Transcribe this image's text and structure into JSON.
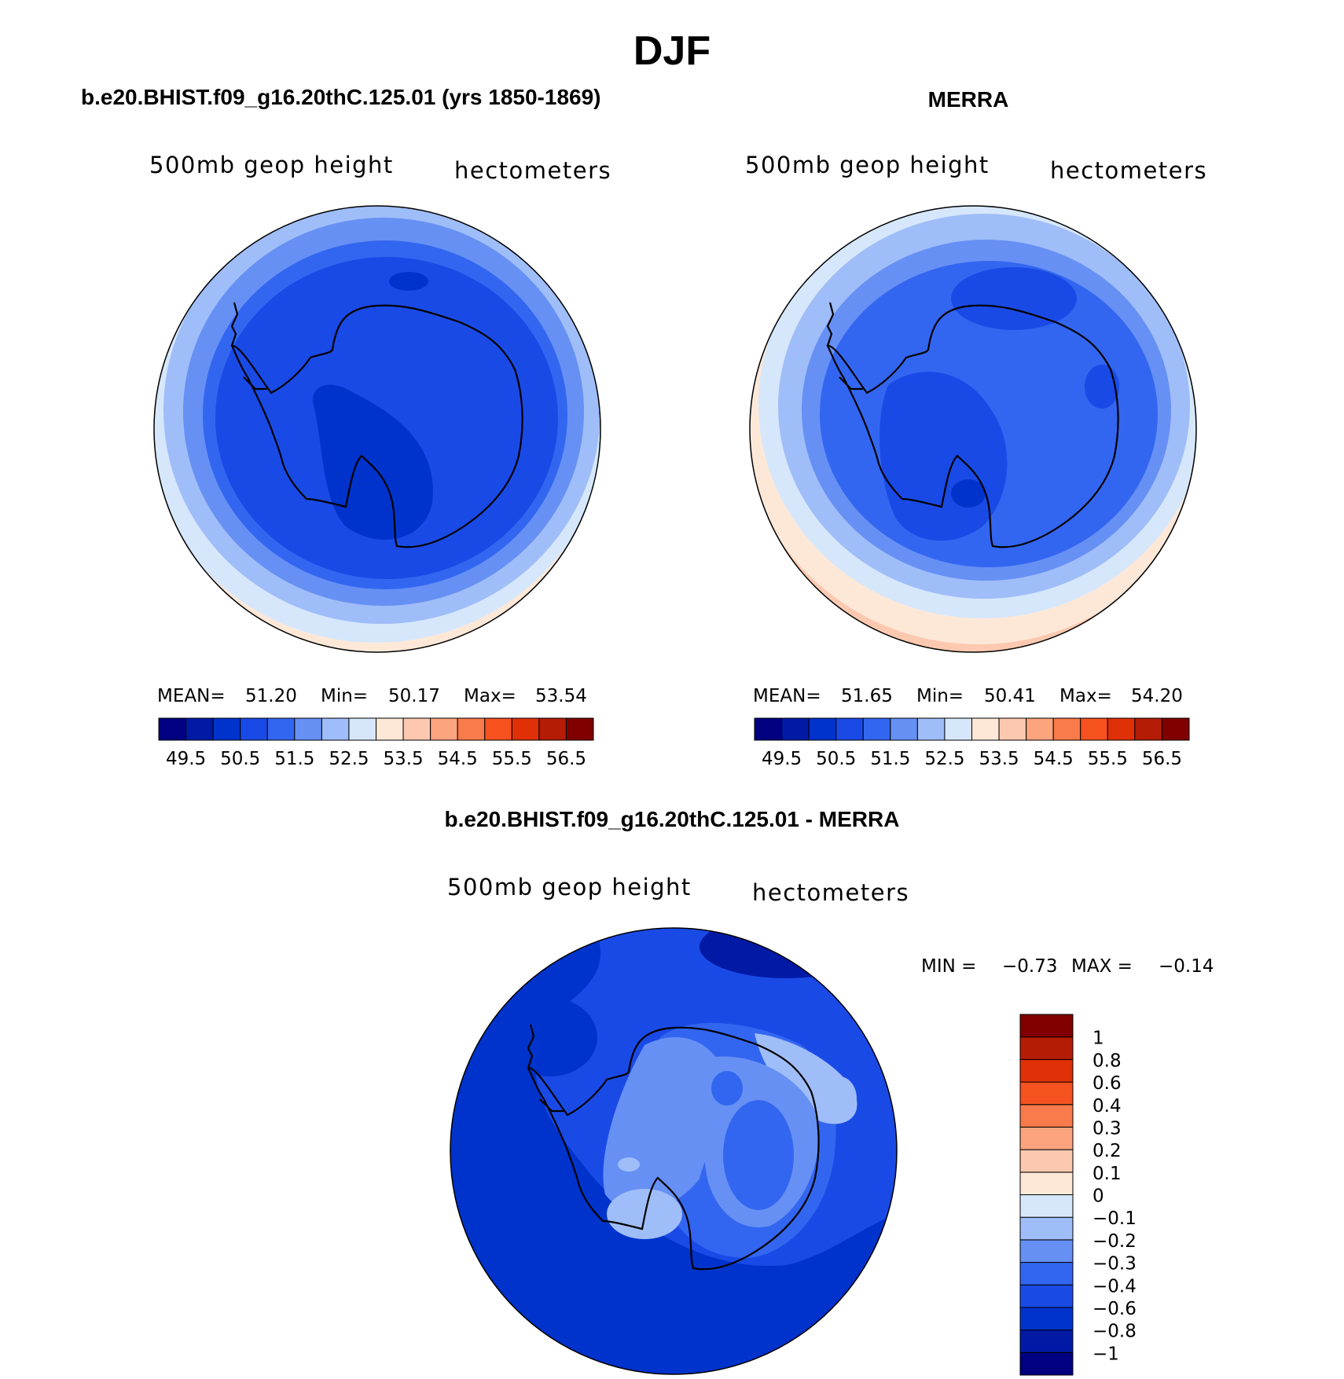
{
  "figure": {
    "season": "DJF"
  },
  "panels": [
    {
      "title": "b.e20.BHIST.f09_g16.20thC.125.01 (yrs 1850-1869)",
      "field": "500mb geop height",
      "units": "hectometers",
      "stats": {
        "mean_label": "MEAN=",
        "mean": "51.20",
        "min_label": "Min=",
        "min": "50.17",
        "max_label": "Max=",
        "max": "53.54"
      }
    },
    {
      "title": "MERRA",
      "field": "500mb geop height",
      "units": "hectometers",
      "stats": {
        "mean_label": "MEAN=",
        "mean": "51.65",
        "min_label": "Min=",
        "min": "50.41",
        "max_label": "Max=",
        "max": "54.20"
      }
    }
  ],
  "difference": {
    "title": "b.e20.BHIST.f09_g16.20thC.125.01 - MERRA",
    "field": "500mb geop height",
    "units": "hectometers",
    "min_label": "MIN =",
    "min": "−0.73",
    "max_label": "MAX =",
    "max": "−0.14"
  },
  "colorbar_abs": {
    "colors": [
      "#000080",
      "#001aa6",
      "#0033cc",
      "#1a4ae6",
      "#3366f0",
      "#6690f4",
      "#9fbdf8",
      "#d6e7fc",
      "#fde8d8",
      "#fcc9b0",
      "#fba47e",
      "#f97a4a",
      "#f5521f",
      "#e03008",
      "#b41c05",
      "#800000"
    ],
    "labels": [
      "49.5",
      "50.5",
      "51.5",
      "52.5",
      "53.5",
      "54.5",
      "55.5",
      "56.5"
    ]
  },
  "colorbar_diff": {
    "colors": [
      "#000080",
      "#001aa6",
      "#0033cc",
      "#1a4ae6",
      "#3366f0",
      "#6690f4",
      "#9fbdf8",
      "#d6e7fc",
      "#fde8d8",
      "#fcc9b0",
      "#fba47e",
      "#f97a4a",
      "#f5521f",
      "#e03008",
      "#b41c05",
      "#800000"
    ],
    "labels": [
      "−1",
      "−0.8",
      "−0.6",
      "−0.4",
      "−0.3",
      "−0.2",
      "−0.1",
      "0",
      "0.1",
      "0.2",
      "0.3",
      "0.4",
      "0.6",
      "0.8",
      "1"
    ]
  }
}
